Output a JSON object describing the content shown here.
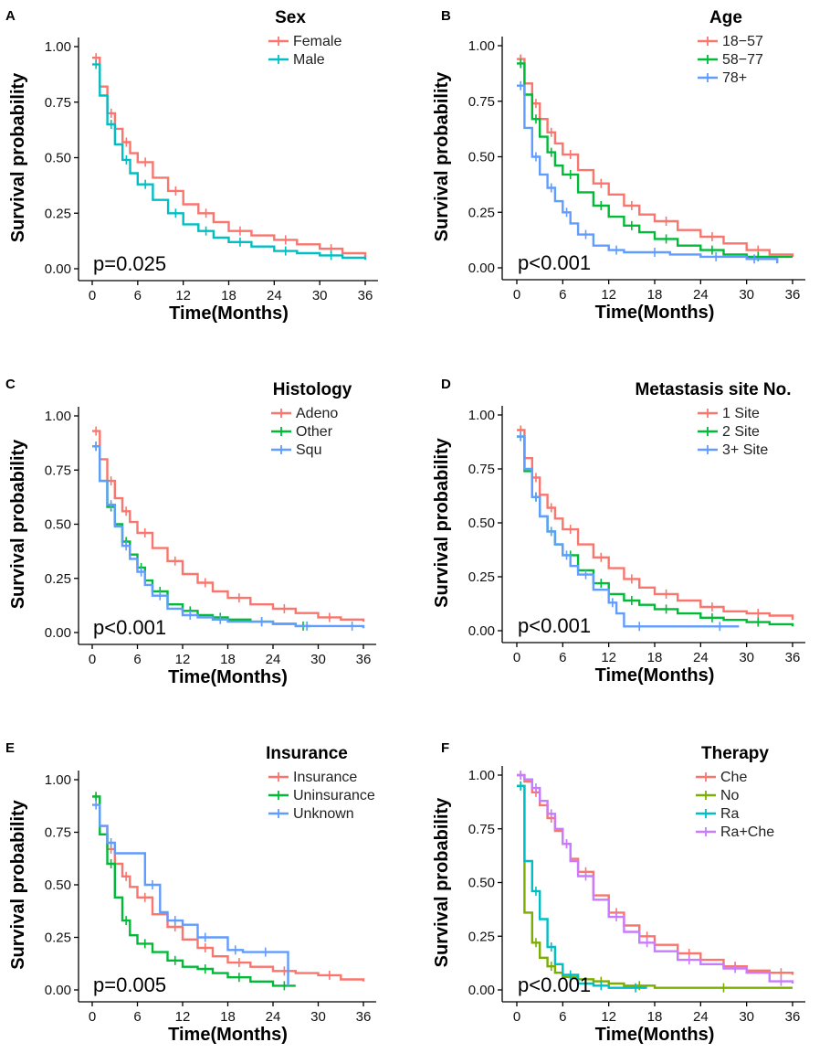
{
  "chart_data": [
    {
      "panel": "A",
      "type": "line",
      "legend_title": "Sex",
      "xlabel": "Time(Months)",
      "ylabel": "Survival probability",
      "xlim": [
        0,
        36
      ],
      "ylim": [
        0,
        1
      ],
      "xticks": [
        0,
        6,
        12,
        18,
        24,
        30,
        36
      ],
      "yticks": [
        0,
        0.25,
        0.5,
        0.75,
        1.0
      ],
      "pvalue": "p=0.025",
      "legend_position": "top-right",
      "series": [
        {
          "name": "Female",
          "color": "#F8766D",
          "x": [
            0,
            1,
            2,
            3,
            4,
            5,
            6,
            8,
            10,
            12,
            14,
            16,
            18,
            21,
            24,
            27,
            30,
            33,
            36
          ],
          "y": [
            0.95,
            0.82,
            0.7,
            0.63,
            0.57,
            0.52,
            0.48,
            0.41,
            0.35,
            0.29,
            0.25,
            0.21,
            0.17,
            0.15,
            0.13,
            0.11,
            0.09,
            0.07,
            0.05
          ]
        },
        {
          "name": "Male",
          "color": "#00BFC4",
          "x": [
            0,
            1,
            2,
            3,
            4,
            5,
            6,
            8,
            10,
            12,
            14,
            16,
            18,
            21,
            24,
            27,
            30,
            33,
            36
          ],
          "y": [
            0.92,
            0.78,
            0.65,
            0.56,
            0.49,
            0.43,
            0.38,
            0.31,
            0.25,
            0.2,
            0.17,
            0.14,
            0.12,
            0.1,
            0.08,
            0.07,
            0.06,
            0.05,
            0.04
          ]
        }
      ]
    },
    {
      "panel": "B",
      "type": "line",
      "legend_title": "Age",
      "xlabel": "Time(Months)",
      "ylabel": "Survival probability",
      "xlim": [
        0,
        36
      ],
      "ylim": [
        0,
        1
      ],
      "xticks": [
        0,
        6,
        12,
        18,
        24,
        30,
        36
      ],
      "yticks": [
        0,
        0.25,
        0.5,
        0.75,
        1.0
      ],
      "pvalue": "p<0.001",
      "legend_position": "top-right",
      "series": [
        {
          "name": "18−57",
          "color": "#F8766D",
          "x": [
            0,
            1,
            2,
            3,
            4,
            5,
            6,
            8,
            10,
            12,
            14,
            16,
            18,
            21,
            24,
            27,
            30,
            33,
            36
          ],
          "y": [
            0.94,
            0.83,
            0.74,
            0.67,
            0.61,
            0.56,
            0.51,
            0.44,
            0.38,
            0.33,
            0.28,
            0.24,
            0.21,
            0.17,
            0.14,
            0.11,
            0.08,
            0.06,
            0.05
          ]
        },
        {
          "name": "58−77",
          "color": "#00BA38",
          "x": [
            0,
            1,
            2,
            3,
            4,
            5,
            6,
            8,
            10,
            12,
            14,
            16,
            18,
            21,
            24,
            27,
            30,
            33,
            36
          ],
          "y": [
            0.92,
            0.78,
            0.67,
            0.59,
            0.52,
            0.46,
            0.42,
            0.34,
            0.28,
            0.23,
            0.19,
            0.16,
            0.13,
            0.1,
            0.08,
            0.06,
            0.05,
            0.05,
            0.05
          ]
        },
        {
          "name": "78+",
          "color": "#619CFF",
          "x": [
            0,
            1,
            2,
            3,
            4,
            5,
            6,
            7,
            8,
            10,
            12,
            14,
            16,
            20,
            24,
            28,
            30,
            32,
            34
          ],
          "y": [
            0.82,
            0.63,
            0.5,
            0.42,
            0.36,
            0.3,
            0.25,
            0.2,
            0.15,
            0.1,
            0.08,
            0.07,
            0.07,
            0.06,
            0.05,
            0.05,
            0.04,
            0.04,
            0.02
          ]
        }
      ]
    },
    {
      "panel": "C",
      "type": "line",
      "legend_title": "Histology",
      "xlabel": "Time(Months)",
      "ylabel": "Survival probability",
      "xlim": [
        0,
        36
      ],
      "ylim": [
        0,
        1
      ],
      "xticks": [
        0,
        6,
        12,
        18,
        24,
        30,
        36
      ],
      "yticks": [
        0,
        0.25,
        0.5,
        0.75,
        1.0
      ],
      "pvalue": "p<0.001",
      "legend_position": "top-right",
      "series": [
        {
          "name": "Adeno",
          "color": "#F8766D",
          "x": [
            0,
            1,
            2,
            3,
            4,
            5,
            6,
            8,
            10,
            12,
            14,
            16,
            18,
            21,
            24,
            27,
            30,
            33,
            36
          ],
          "y": [
            0.93,
            0.8,
            0.7,
            0.62,
            0.56,
            0.51,
            0.46,
            0.39,
            0.33,
            0.27,
            0.23,
            0.19,
            0.16,
            0.13,
            0.11,
            0.09,
            0.07,
            0.06,
            0.05
          ]
        },
        {
          "name": "Other",
          "color": "#00BA38",
          "x": [
            0,
            1,
            2,
            3,
            4,
            5,
            6,
            7,
            8,
            10,
            12,
            14,
            16,
            18,
            21,
            24,
            27,
            29
          ],
          "y": [
            0.86,
            0.7,
            0.58,
            0.5,
            0.42,
            0.36,
            0.3,
            0.24,
            0.19,
            0.13,
            0.1,
            0.08,
            0.07,
            0.06,
            0.05,
            0.04,
            0.03,
            0.03
          ]
        },
        {
          "name": "Squ",
          "color": "#619CFF",
          "x": [
            0,
            1,
            2,
            3,
            4,
            5,
            6,
            7,
            8,
            10,
            12,
            14,
            16,
            18,
            21,
            24,
            27,
            30,
            33,
            36
          ],
          "y": [
            0.86,
            0.7,
            0.59,
            0.49,
            0.4,
            0.34,
            0.28,
            0.22,
            0.17,
            0.11,
            0.08,
            0.07,
            0.06,
            0.05,
            0.05,
            0.04,
            0.03,
            0.03,
            0.03,
            0.02
          ]
        }
      ]
    },
    {
      "panel": "D",
      "type": "line",
      "legend_title": "Metastasis site No.",
      "xlabel": "Time(Months)",
      "ylabel": "Survival probability",
      "xlim": [
        0,
        36
      ],
      "ylim": [
        0,
        1
      ],
      "xticks": [
        0,
        6,
        12,
        18,
        24,
        30,
        36
      ],
      "yticks": [
        0,
        0.25,
        0.5,
        0.75,
        1.0
      ],
      "pvalue": "p<0.001",
      "legend_position": "top-right",
      "series": [
        {
          "name": "1 Site",
          "color": "#F8766D",
          "x": [
            0,
            1,
            2,
            3,
            4,
            5,
            6,
            8,
            10,
            12,
            14,
            16,
            18,
            21,
            24,
            27,
            30,
            33,
            36
          ],
          "y": [
            0.93,
            0.8,
            0.71,
            0.63,
            0.57,
            0.52,
            0.47,
            0.4,
            0.34,
            0.29,
            0.24,
            0.2,
            0.17,
            0.14,
            0.11,
            0.09,
            0.08,
            0.07,
            0.05
          ]
        },
        {
          "name": "2 Site",
          "color": "#00BA38",
          "x": [
            0,
            1,
            2,
            3,
            4,
            5,
            6,
            8,
            10,
            12,
            14,
            16,
            18,
            21,
            24,
            27,
            30,
            33,
            36
          ],
          "y": [
            0.9,
            0.74,
            0.62,
            0.53,
            0.46,
            0.4,
            0.35,
            0.28,
            0.22,
            0.17,
            0.14,
            0.12,
            0.1,
            0.08,
            0.06,
            0.05,
            0.04,
            0.03,
            0.02
          ]
        },
        {
          "name": "3+ Site",
          "color": "#619CFF",
          "x": [
            0,
            1,
            2,
            3,
            4,
            5,
            6,
            7,
            8,
            10,
            12,
            13,
            14,
            18,
            24,
            29
          ],
          "y": [
            0.9,
            0.75,
            0.62,
            0.53,
            0.46,
            0.4,
            0.35,
            0.3,
            0.26,
            0.19,
            0.13,
            0.08,
            0.02,
            0.02,
            0.02,
            0.02
          ]
        }
      ]
    },
    {
      "panel": "E",
      "type": "line",
      "legend_title": "Insurance",
      "xlabel": "Time(Months)",
      "ylabel": "Survival probability",
      "xlim": [
        0,
        36
      ],
      "ylim": [
        0,
        1
      ],
      "xticks": [
        0,
        6,
        12,
        18,
        24,
        30,
        36
      ],
      "yticks": [
        0,
        0.25,
        0.5,
        0.75,
        1.0
      ],
      "pvalue": "p=0.005",
      "legend_position": "top-right",
      "series": [
        {
          "name": "Insurance",
          "color": "#F8766D",
          "x": [
            0,
            1,
            2,
            3,
            4,
            5,
            6,
            8,
            10,
            12,
            14,
            16,
            18,
            21,
            24,
            27,
            30,
            33,
            36
          ],
          "y": [
            0.92,
            0.78,
            0.67,
            0.6,
            0.54,
            0.49,
            0.44,
            0.36,
            0.3,
            0.24,
            0.2,
            0.16,
            0.13,
            0.11,
            0.09,
            0.08,
            0.07,
            0.05,
            0.04
          ]
        },
        {
          "name": "Uninsurance",
          "color": "#00BA38",
          "x": [
            0,
            1,
            2,
            3,
            4,
            5,
            6,
            8,
            10,
            12,
            14,
            16,
            18,
            21,
            24,
            27
          ],
          "y": [
            0.92,
            0.74,
            0.6,
            0.44,
            0.33,
            0.26,
            0.22,
            0.18,
            0.14,
            0.11,
            0.1,
            0.08,
            0.06,
            0.04,
            0.02,
            0.02
          ]
        },
        {
          "name": "Unknown",
          "color": "#619CFF",
          "x": [
            0,
            1,
            2,
            3,
            7,
            9,
            10,
            12,
            14,
            16,
            18,
            20,
            22,
            24,
            26
          ],
          "y": [
            0.88,
            0.78,
            0.7,
            0.65,
            0.5,
            0.37,
            0.33,
            0.31,
            0.25,
            0.25,
            0.19,
            0.18,
            0.18,
            0.18,
            0.02
          ]
        }
      ]
    },
    {
      "panel": "F",
      "type": "line",
      "legend_title": "Therapy",
      "xlabel": "Time(Months)",
      "ylabel": "Survival probability",
      "xlim": [
        0,
        36
      ],
      "ylim": [
        0,
        1
      ],
      "xticks": [
        0,
        6,
        12,
        18,
        24,
        30,
        36
      ],
      "yticks": [
        0,
        0.25,
        0.5,
        0.75,
        1.0
      ],
      "pvalue": "p<0.001",
      "legend_position": "top-right",
      "series": [
        {
          "name": "Che",
          "color": "#F8766D",
          "x": [
            0,
            1,
            2,
            3,
            4,
            5,
            6,
            7,
            8,
            10,
            12,
            14,
            16,
            18,
            21,
            24,
            27,
            30,
            33,
            36
          ],
          "y": [
            1.0,
            0.97,
            0.92,
            0.86,
            0.8,
            0.74,
            0.68,
            0.61,
            0.55,
            0.44,
            0.36,
            0.3,
            0.25,
            0.21,
            0.17,
            0.14,
            0.11,
            0.09,
            0.08,
            0.07
          ]
        },
        {
          "name": "No",
          "color": "#7CAE00",
          "x": [
            0,
            1,
            2,
            3,
            4,
            5,
            6,
            8,
            10,
            12,
            14,
            18,
            24,
            30,
            36
          ],
          "y": [
            0.95,
            0.36,
            0.22,
            0.15,
            0.11,
            0.08,
            0.06,
            0.05,
            0.04,
            0.03,
            0.02,
            0.01,
            0.01,
            0.01,
            0.01
          ]
        },
        {
          "name": "Ra",
          "color": "#00BFC4",
          "x": [
            0,
            1,
            2,
            3,
            4,
            5,
            6,
            8,
            10,
            12,
            14,
            17
          ],
          "y": [
            0.95,
            0.6,
            0.46,
            0.33,
            0.2,
            0.12,
            0.07,
            0.03,
            0.02,
            0.01,
            0.01,
            0.01
          ]
        },
        {
          "name": "Ra+Che",
          "color": "#C77CFF",
          "x": [
            0,
            1,
            2,
            3,
            4,
            5,
            6,
            7,
            8,
            10,
            12,
            14,
            16,
            18,
            21,
            24,
            27,
            30,
            33,
            36
          ],
          "y": [
            1.0,
            0.98,
            0.94,
            0.88,
            0.82,
            0.75,
            0.68,
            0.6,
            0.53,
            0.42,
            0.34,
            0.27,
            0.22,
            0.18,
            0.14,
            0.12,
            0.1,
            0.08,
            0.04,
            0.03
          ]
        }
      ]
    }
  ]
}
